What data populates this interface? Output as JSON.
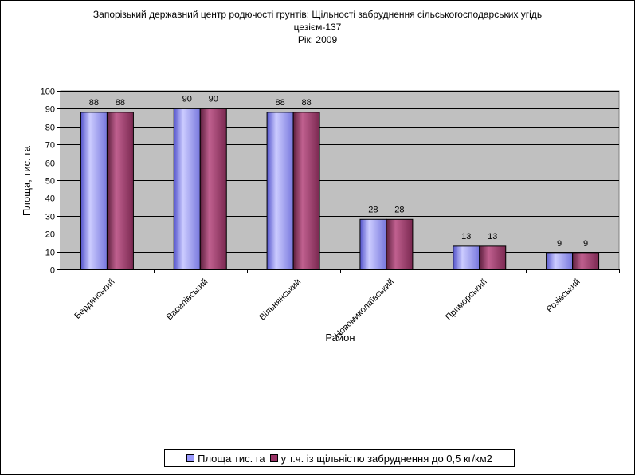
{
  "chart_data": {
    "type": "bar",
    "title_lines": [
      "Запорізький державний центр родючості грунтів: Щільності забруднення сільськогосподарських угідь",
      "цезієм-137",
      "Рік: 2009"
    ],
    "xlabel": "Район",
    "ylabel": "Площа, тис. га",
    "ylim": [
      0,
      100
    ],
    "yticks": [
      0,
      10,
      20,
      30,
      40,
      50,
      60,
      70,
      80,
      90,
      100
    ],
    "categories": [
      "Бердянський",
      "Василівський",
      "Вільнянський",
      "Новомиколаївський",
      "Приморський",
      "Розівський"
    ],
    "series": [
      {
        "name": "Площа тис. га",
        "values": [
          88,
          90,
          88,
          28,
          13,
          9
        ],
        "color": "#9999ff"
      },
      {
        "name": "у т.ч. із щільністю забруднення до 0,5 кг/км2",
        "values": [
          88,
          90,
          88,
          28,
          13,
          9
        ],
        "color": "#993366"
      }
    ],
    "plot_background": "#c0c0c0",
    "grid": true,
    "legend_position": "bottom"
  }
}
